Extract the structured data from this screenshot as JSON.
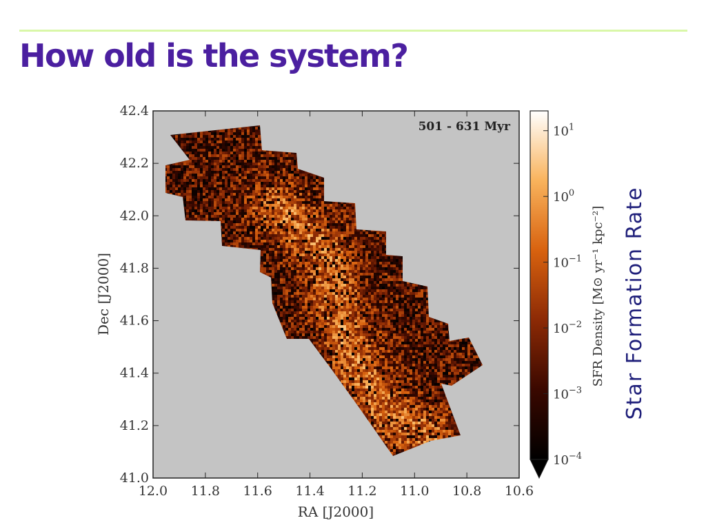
{
  "slide": {
    "title": "How old is the system?",
    "side_label": "Star Formation Rate"
  },
  "colors": {
    "title": "#4b1fa0",
    "rule": "#d9f7a8",
    "plot_background": "#c4c4c4",
    "side_label": "#1f1f7a"
  },
  "chart_data": {
    "type": "heatmap",
    "title": "",
    "annotation": "501 - 631 Myr",
    "xlabel": "RA [J2000]",
    "ylabel": "Dec [J2000]",
    "xlim": [
      12.0,
      10.6
    ],
    "ylim": [
      41.0,
      42.4
    ],
    "x_ticks": [
      "12.0",
      "11.8",
      "11.6",
      "11.4",
      "11.2",
      "11.0",
      "10.8",
      "10.6"
    ],
    "y_ticks": [
      "42.4",
      "42.2",
      "42.0",
      "41.8",
      "41.6",
      "41.4",
      "41.2",
      "41.0"
    ],
    "grid": false,
    "colorbar": {
      "label": "SFR Density [M⊙ yr⁻¹ kpc⁻²]",
      "scale": "log",
      "range": [
        0.0001,
        20
      ],
      "ticks": [
        {
          "base": "10",
          "exp": "1"
        },
        {
          "base": "10",
          "exp": "0"
        },
        {
          "base": "10",
          "exp": "−1"
        },
        {
          "base": "10",
          "exp": "−2"
        },
        {
          "base": "10",
          "exp": "−3"
        },
        {
          "base": "10",
          "exp": "−4"
        }
      ],
      "colormap": "afmhot",
      "extend": "min"
    }
  }
}
